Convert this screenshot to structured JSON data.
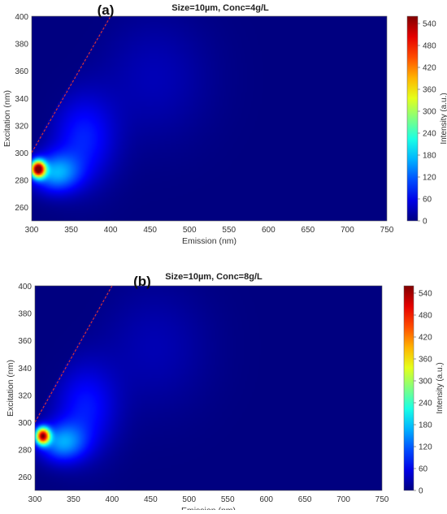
{
  "chart_data": [
    {
      "type": "heatmap",
      "panel_label": "(a)",
      "title": "Size=10µm, Conc=4g/L",
      "xlabel": "Emission (nm)",
      "ylabel": "Excitation (nm)",
      "colorbar_label": "Intensity (a.u.)",
      "xlim": [
        300,
        750
      ],
      "ylim": [
        250,
        400
      ],
      "xticks": [
        300,
        350,
        400,
        450,
        500,
        550,
        600,
        650,
        700,
        750
      ],
      "yticks": [
        260,
        280,
        300,
        320,
        340,
        360,
        380,
        400
      ],
      "clim": [
        0,
        560
      ],
      "colorbar_ticks": [
        0,
        60,
        120,
        180,
        240,
        300,
        360,
        420,
        480,
        540
      ],
      "scatter_line": {
        "x": [
          300,
          400
        ],
        "y": [
          300,
          400
        ],
        "color": "#d2303a",
        "style": "dashed"
      },
      "peaks": [
        {
          "em": 308,
          "ex": 288,
          "intensity": 545
        },
        {
          "em": 330,
          "ex": 285,
          "intensity": 150
        },
        {
          "em": 365,
          "ex": 310,
          "intensity": 85
        },
        {
          "em": 455,
          "ex": 355,
          "intensity": 30
        }
      ]
    },
    {
      "type": "heatmap",
      "panel_label": "(b)",
      "title": "Size=10µm, Conc=8g/L",
      "xlabel": "Emission (nm)",
      "ylabel": "Excitation (nm)",
      "colorbar_label": "Intensity (a.u.)",
      "xlim": [
        300,
        750
      ],
      "ylim": [
        250,
        400
      ],
      "xticks": [
        300,
        350,
        400,
        450,
        500,
        550,
        600,
        650,
        700,
        750
      ],
      "yticks": [
        260,
        280,
        300,
        320,
        340,
        360,
        380,
        400
      ],
      "clim": [
        0,
        560
      ],
      "colorbar_ticks": [
        0,
        60,
        120,
        180,
        240,
        300,
        360,
        420,
        480,
        540
      ],
      "scatter_line": {
        "x": [
          300,
          400
        ],
        "y": [
          300,
          400
        ],
        "color": "#d2303a",
        "style": "dashed"
      },
      "peaks": [
        {
          "em": 310,
          "ex": 290,
          "intensity": 500
        },
        {
          "em": 335,
          "ex": 285,
          "intensity": 140
        },
        {
          "em": 365,
          "ex": 310,
          "intensity": 80
        },
        {
          "em": 455,
          "ex": 355,
          "intensity": 28
        }
      ]
    }
  ]
}
